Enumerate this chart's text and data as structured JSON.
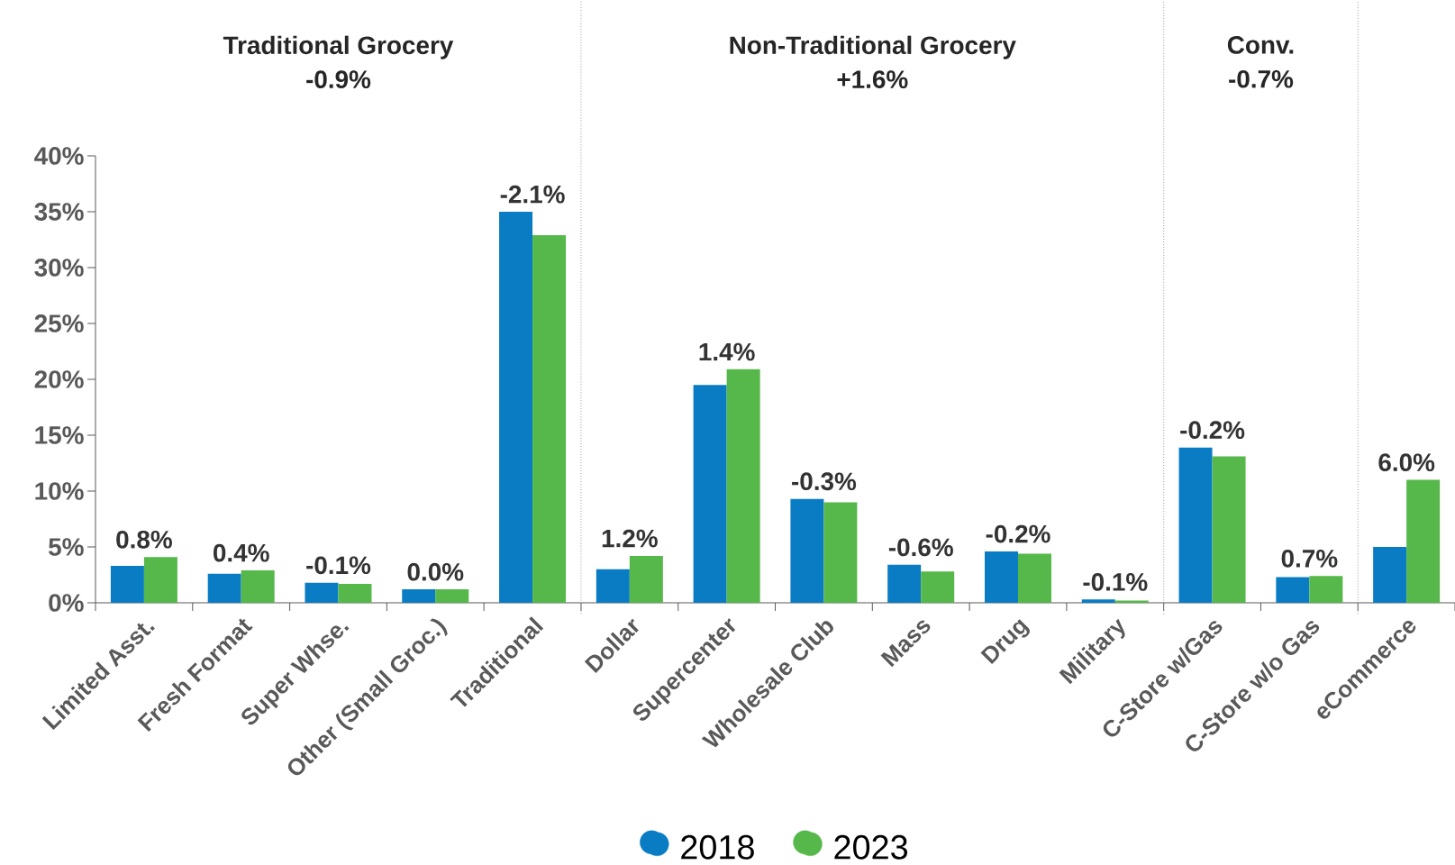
{
  "chart_data": {
    "type": "bar",
    "categories": [
      "Limited Asst.",
      "Fresh Format",
      "Super Whse.",
      "Other (Small Groc.)",
      "Traditional",
      "Dollar",
      "Supercenter",
      "Wholesale Club",
      "Mass",
      "Drug",
      "Military",
      "C-Store w/Gas",
      "C-Store w/o Gas",
      "eCommerce"
    ],
    "series": [
      {
        "name": "2018",
        "color": "#0a7cc4",
        "values": [
          3.3,
          2.6,
          1.8,
          1.2,
          35.0,
          3.0,
          19.5,
          9.3,
          3.4,
          4.6,
          0.3,
          13.9,
          2.3,
          5.0
        ]
      },
      {
        "name": "2023",
        "color": "#56b84a",
        "values": [
          4.1,
          2.9,
          1.7,
          1.2,
          32.9,
          4.2,
          20.9,
          9.0,
          2.8,
          4.4,
          0.2,
          13.1,
          2.4,
          11.0
        ]
      }
    ],
    "ylim": [
      0,
      40
    ],
    "yticks": [
      {
        "value": 0,
        "label": "0%"
      },
      {
        "value": 5,
        "label": "5%"
      },
      {
        "value": 10,
        "label": "10%"
      },
      {
        "value": 15,
        "label": "15%"
      },
      {
        "value": 20,
        "label": "20%"
      },
      {
        "value": 25,
        "label": "25%"
      },
      {
        "value": 30,
        "label": "30%"
      },
      {
        "value": 35,
        "label": "35%"
      },
      {
        "value": 40,
        "label": "40%"
      }
    ],
    "annotations": [
      "Traditional Grocery",
      "-0.9%",
      "Non-Traditional Grocery",
      "+1.6%",
      "Conv.",
      "-0.7%",
      {
        "text": "0.8%",
        "x": "Limited Asst.",
        "y": 4.1
      },
      {
        "text": "0.4%",
        "x": "Fresh Format",
        "y": 2.9
      },
      {
        "text": "-0.1%",
        "x": "Super Whse.",
        "y": 1.8
      },
      {
        "text": "0.0%",
        "x": "Other (Small Groc.)",
        "y": 1.2
      },
      {
        "text": "-2.1%",
        "x": "Traditional",
        "y": 35.0
      },
      {
        "text": "1.2%",
        "x": "Dollar",
        "y": 4.2
      },
      {
        "text": "1.4%",
        "x": "Supercenter",
        "y": 20.9
      },
      {
        "text": "-0.3%",
        "x": "Wholesale Club",
        "y": 9.3
      },
      {
        "text": "-0.6%",
        "x": "Mass",
        "y": 3.4
      },
      {
        "text": "-0.2%",
        "x": "Drug",
        "y": 4.6
      },
      {
        "text": "-0.1%",
        "x": "Military",
        "y": 0.3
      },
      {
        "text": "-0.2%",
        "x": "C-Store w/Gas",
        "y": 13.9
      },
      {
        "text": "0.7%",
        "x": "C-Store w/o Gas",
        "y": 2.4
      },
      {
        "text": "6.0%",
        "x": "eCommerce",
        "y": 11.0
      }
    ],
    "grid": false,
    "legend": "bottom",
    "marker": "circle"
  }
}
